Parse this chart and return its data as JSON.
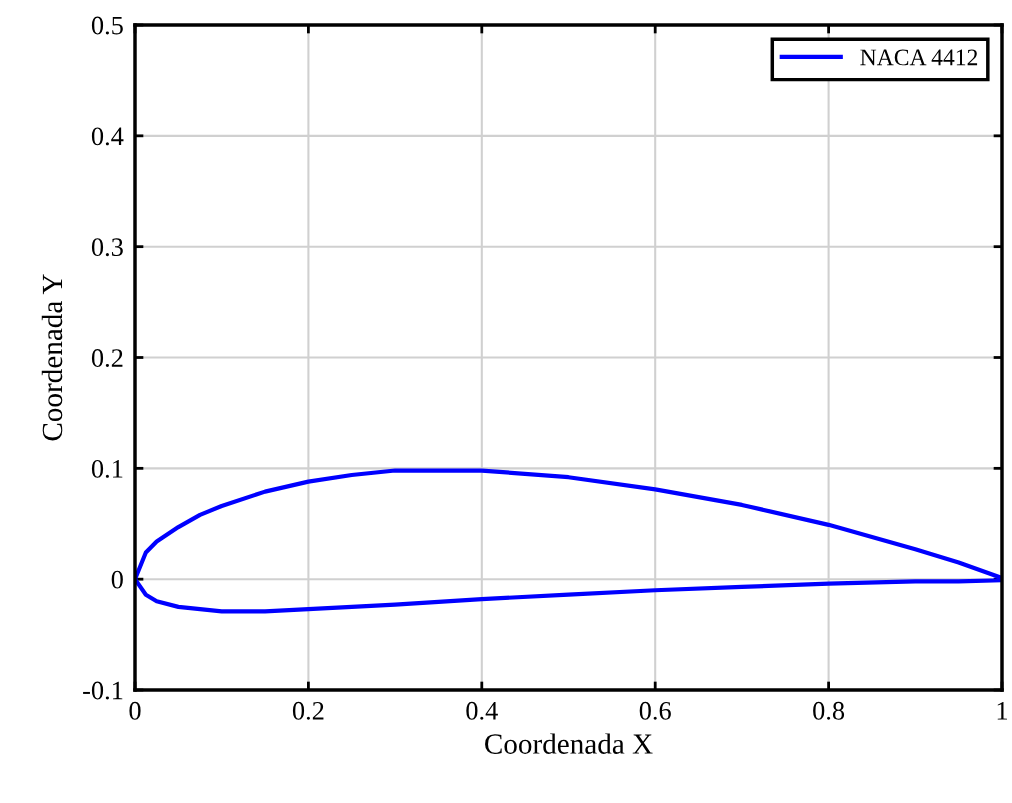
{
  "chart_data": {
    "type": "line",
    "xlabel": "Coordenada X",
    "ylabel": "Coordenada Y",
    "xlim": [
      0,
      1
    ],
    "ylim": [
      -0.1,
      0.5
    ],
    "xticks": [
      0,
      0.2,
      0.4,
      0.6,
      0.8,
      1
    ],
    "yticks": [
      -0.1,
      0,
      0.1,
      0.2,
      0.3,
      0.4,
      0.5
    ],
    "grid": true,
    "legend": "top right",
    "marker": "none",
    "line_style": "solid",
    "series": [
      {
        "name": "NACA 4412",
        "color": "#0000ff",
        "x": [
          1,
          0.95,
          0.9,
          0.8,
          0.7,
          0.6,
          0.5,
          0.4,
          0.3,
          0.25,
          0.2,
          0.15,
          0.1,
          0.075,
          0.05,
          0.025,
          0.0125,
          0,
          0.0125,
          0.025,
          0.05,
          0.075,
          0.1,
          0.15,
          0.2,
          0.25,
          0.3,
          0.4,
          0.5,
          0.6,
          0.7,
          0.8,
          0.9,
          0.95,
          1
        ],
        "values": [
          0.001,
          0.015,
          0.027,
          0.049,
          0.067,
          0.081,
          0.092,
          0.098,
          0.098,
          0.094,
          0.088,
          0.079,
          0.066,
          0.058,
          0.047,
          0.034,
          0.024,
          0,
          -0.014,
          -0.02,
          -0.025,
          -0.027,
          -0.029,
          -0.029,
          -0.027,
          -0.025,
          -0.023,
          -0.018,
          -0.014,
          -0.01,
          -0.007,
          -0.004,
          -0.002,
          -0.002,
          -0.001
        ]
      }
    ]
  }
}
